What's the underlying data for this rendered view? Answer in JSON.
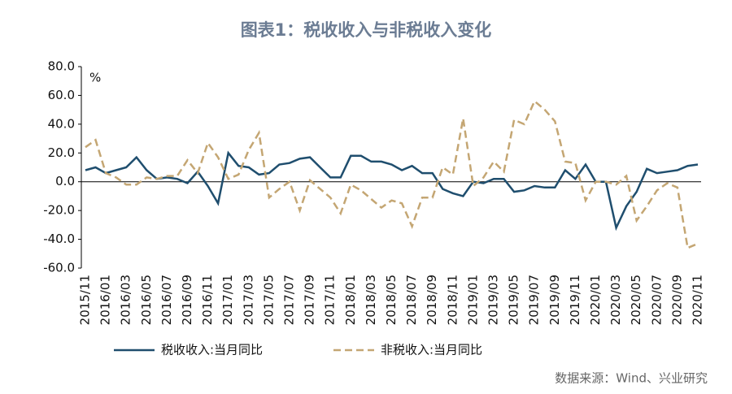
{
  "chart_data": {
    "type": "line",
    "title": "图表1：税收收入与非税收入变化",
    "y_unit": "%",
    "source": "数据来源：Wind、兴业研究",
    "categories": [
      "2015/11",
      null,
      "2016/01",
      null,
      "2016/03",
      null,
      "2016/05",
      null,
      "2016/07",
      null,
      "2016/09",
      null,
      "2016/11",
      null,
      "2017/01",
      null,
      "2017/03",
      null,
      "2017/05",
      null,
      "2017/07",
      null,
      "2017/09",
      null,
      "2017/11",
      null,
      "2018/01",
      null,
      "2018/03",
      null,
      "2018/05",
      null,
      "2018/07",
      null,
      "2018/09",
      null,
      "2018/11",
      null,
      "2019/01",
      null,
      "2019/03",
      null,
      "2019/05",
      null,
      "2019/07",
      null,
      "2019/09",
      null,
      "2019/11",
      null,
      "2020/01",
      null,
      "2020/03",
      null,
      "2020/05",
      null,
      "2020/07",
      null,
      "2020/09",
      null,
      "2020/11"
    ],
    "series": [
      {
        "name": "税收收入:当月同比",
        "color": "#1f4e6e",
        "dash": false,
        "values": [
          8,
          10,
          6,
          8,
          10,
          17,
          8,
          2,
          3,
          2,
          -1,
          7,
          -3,
          -15,
          20,
          11,
          10,
          5,
          6,
          12,
          13,
          16,
          17,
          10,
          3,
          3,
          18,
          18,
          14,
          14,
          12,
          8,
          11,
          6,
          6,
          -5,
          -8,
          -10,
          0,
          -1,
          2,
          2,
          -7,
          -6,
          -3,
          -4,
          -4,
          8,
          2,
          12,
          0,
          0,
          -32,
          -17,
          -7,
          9,
          6,
          7,
          8,
          11,
          12
        ]
      },
      {
        "name": "非税收入:当月同比",
        "color": "#c4a673",
        "dash": true,
        "values": [
          24,
          29,
          6,
          3,
          -2,
          -2,
          3,
          2,
          4,
          4,
          15,
          6,
          27,
          17,
          2,
          5,
          22,
          34,
          -11,
          -5,
          0,
          -20,
          1,
          -5,
          -11,
          -22,
          -2,
          -6,
          -12,
          -18,
          -13,
          -15,
          -31,
          -11,
          -11,
          10,
          5,
          44,
          -3,
          3,
          14,
          7,
          43,
          40,
          56,
          50,
          42,
          14,
          13,
          -13,
          0,
          0,
          -2,
          4,
          -27,
          -17,
          -6,
          -1,
          -4,
          -46,
          -43
        ]
      }
    ],
    "ylim": [
      -60,
      80
    ],
    "yticks": [
      {
        "value": -60,
        "label": "-60.0"
      },
      {
        "value": -40,
        "label": "-40.0"
      },
      {
        "value": -20,
        "label": "-20.0"
      },
      {
        "value": 0,
        "label": "0.0"
      },
      {
        "value": 20,
        "label": "20.0"
      },
      {
        "value": 40,
        "label": "40.0"
      },
      {
        "value": 60,
        "label": "60.0"
      },
      {
        "value": 80,
        "label": "80.0"
      }
    ]
  }
}
